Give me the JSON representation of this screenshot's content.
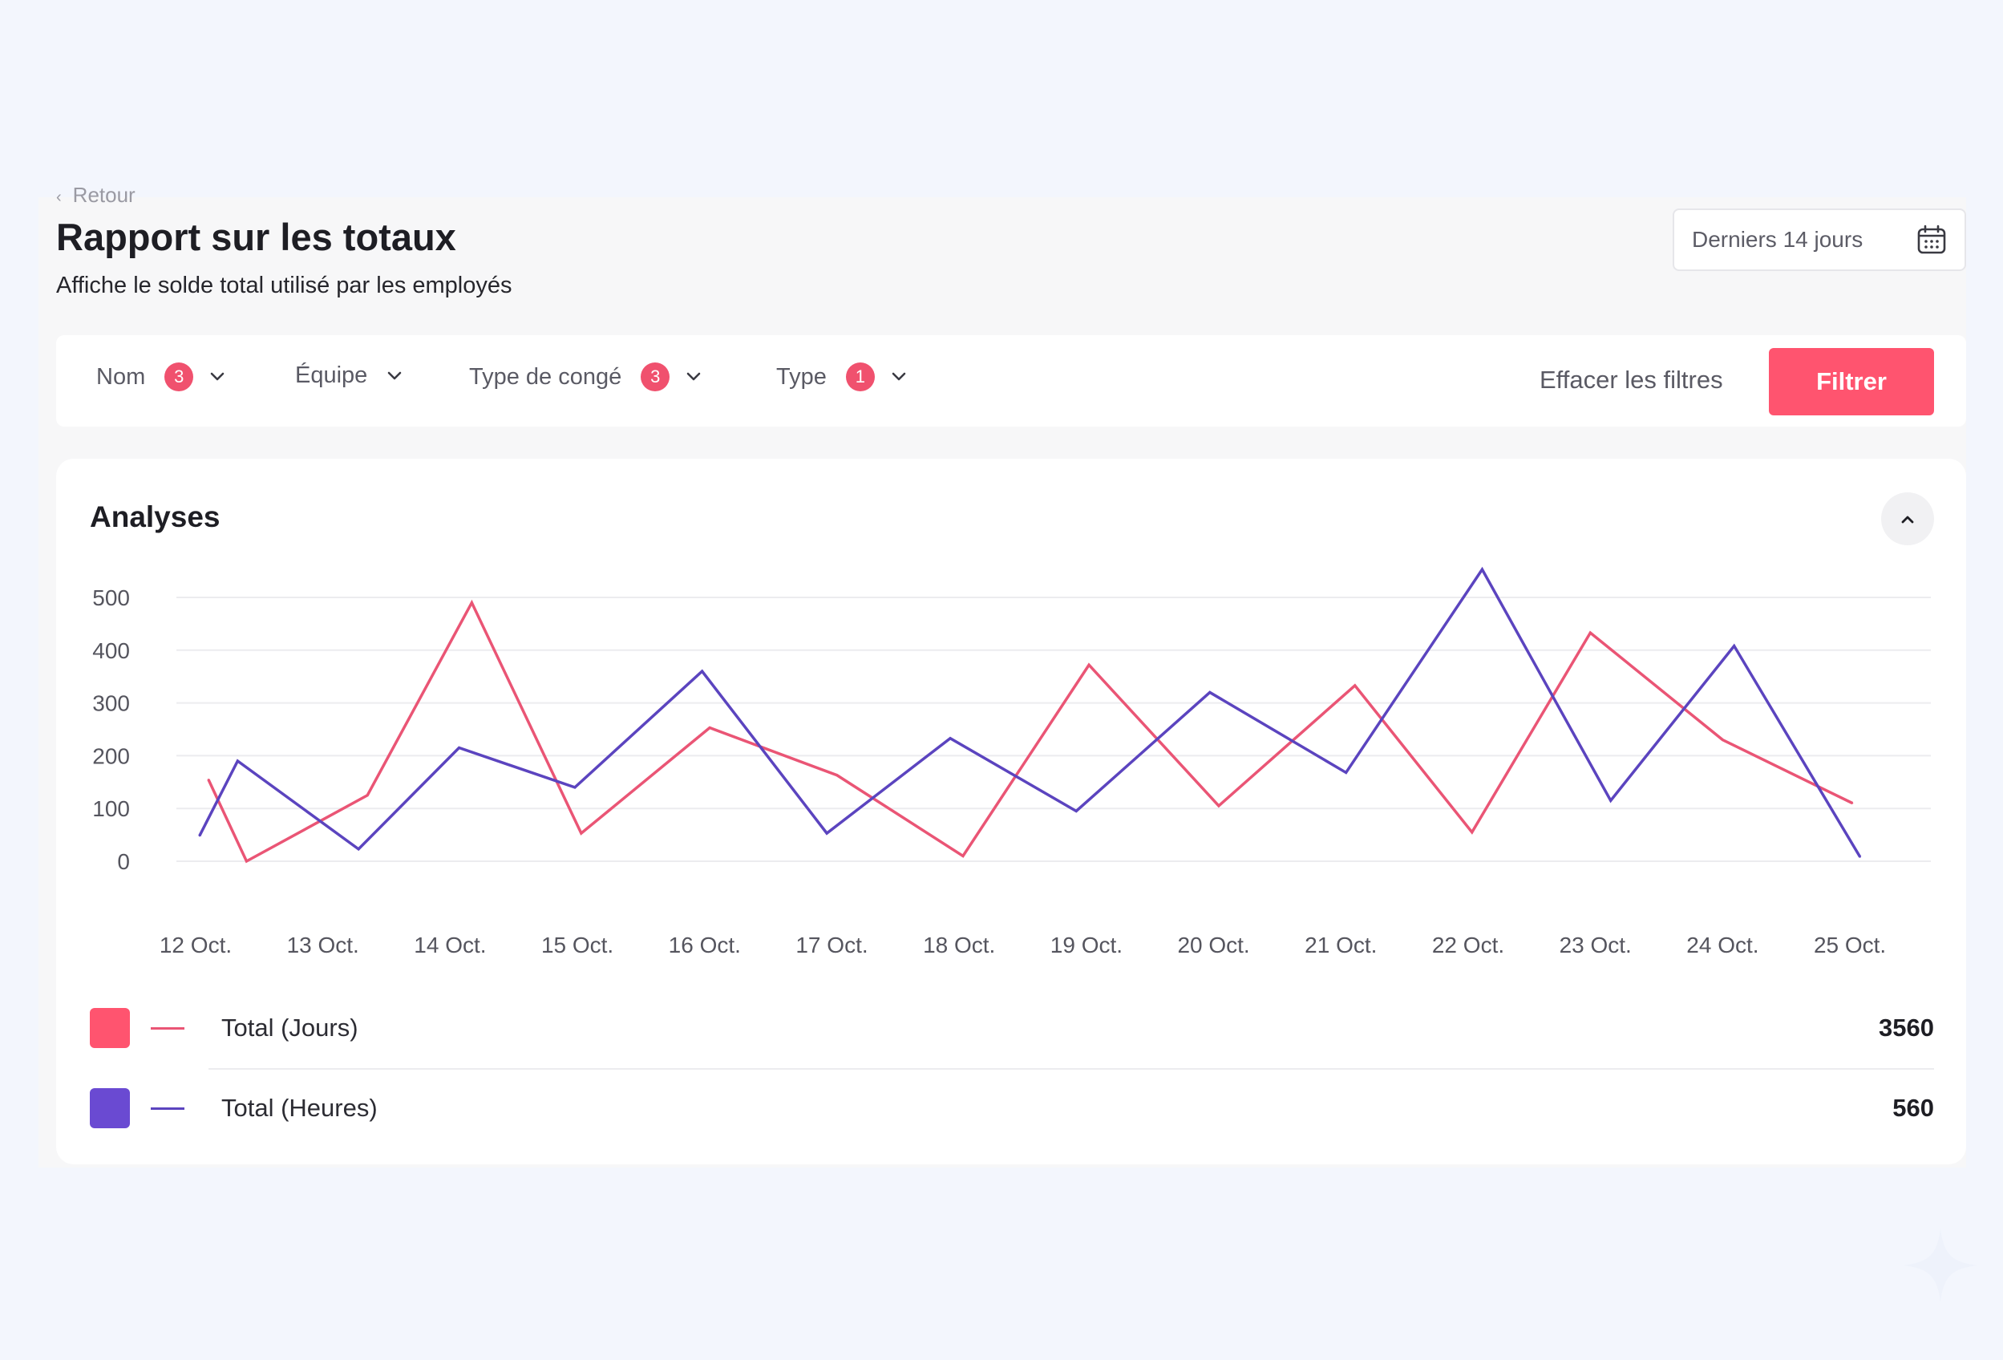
{
  "header": {
    "back_label": "Retour",
    "title": "Rapport sur les totaux",
    "subtitle": "Affiche le solde total utilisé par les employés",
    "date_range": "Derniers 14 jours",
    "date_icon": "calendar-icon"
  },
  "filters": {
    "items": [
      {
        "label": "Nom",
        "count": "3"
      },
      {
        "label": "Équipe",
        "count": ""
      },
      {
        "label": "Type de congé",
        "count": "3"
      },
      {
        "label": "Type",
        "count": "1"
      }
    ],
    "clear_label": "Effacer les filtres",
    "apply_label": "Filtrer"
  },
  "analytics": {
    "title": "Analyses",
    "collapse_icon": "chevron-up-icon"
  },
  "colors": {
    "accent": "#ff546f",
    "series_jours": "#ea5575",
    "series_heures": "#5b44bf",
    "swatch_jours": "#ff546f",
    "swatch_heures": "#6a4ad2"
  },
  "chart_data": {
    "type": "line",
    "categories": [
      "12 Oct.",
      "13 Oct.",
      "14 Oct.",
      "15 Oct.",
      "16 Oct.",
      "17 Oct.",
      "18 Oct.",
      "19 Oct.",
      "20 Oct.",
      "21 Oct.",
      "22 Oct.",
      "23 Oct.",
      "24 Oct.",
      "25 Oct."
    ],
    "ylim": [
      0,
      500
    ],
    "yticks": [
      0,
      100,
      200,
      300,
      400,
      500
    ],
    "grid": true,
    "legend_position": "bottom",
    "series": [
      {
        "name": "Total (Jours)",
        "color": "#ea5575",
        "total": "3560",
        "x": [
          0.1,
          0.4,
          1.35,
          2.17,
          3.03,
          4.04,
          5.04,
          6.03,
          7.02,
          8.04,
          9.11,
          10.03,
          10.96,
          12.0,
          13.02
        ],
        "values": [
          155,
          0,
          125,
          490,
          53,
          253,
          163,
          10,
          372,
          105,
          333,
          55,
          433,
          230,
          110
        ]
      },
      {
        "name": "Total (Heures)",
        "color": "#5b44bf",
        "total": "560",
        "x": [
          0.03,
          0.33,
          1.28,
          2.07,
          2.98,
          3.98,
          4.96,
          5.93,
          6.92,
          7.97,
          9.04,
          10.11,
          11.12,
          12.09,
          13.08
        ],
        "values": [
          48,
          190,
          23,
          215,
          140,
          360,
          53,
          233,
          95,
          320,
          168,
          553,
          115,
          408,
          8
        ]
      }
    ]
  }
}
